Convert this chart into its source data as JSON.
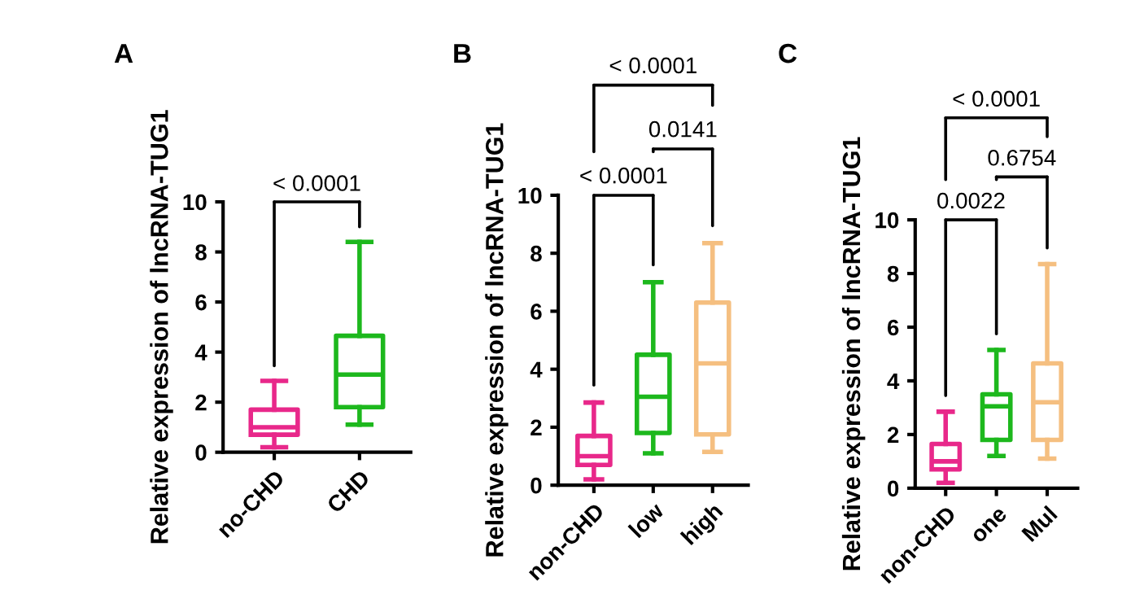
{
  "chart_data": [
    {
      "type": "box",
      "title": "A",
      "ylabel": "Relative expression of lncRNA-TUG1",
      "categories": [
        "no-CHD",
        "CHD"
      ],
      "colors": [
        "#e8288a",
        "#1db81d"
      ],
      "boxes": [
        {
          "low": 0.2,
          "q1": 0.7,
          "median": 1.0,
          "q3": 1.7,
          "high": 2.85
        },
        {
          "low": 1.1,
          "q1": 1.8,
          "median": 3.1,
          "q3": 4.65,
          "high": 8.4
        }
      ],
      "ylim": [
        0,
        10
      ],
      "yticks": [
        0,
        2,
        4,
        6,
        8,
        10
      ],
      "annotations": [
        "< 0.0001"
      ],
      "grid": false,
      "legend": false
    },
    {
      "type": "box",
      "title": "B",
      "ylabel": "Relative expression of lncRNA-TUG1",
      "categories": [
        "non-CHD",
        "low",
        "high"
      ],
      "colors": [
        "#e8288a",
        "#1db81d",
        "#f5bf80"
      ],
      "boxes": [
        {
          "low": 0.2,
          "q1": 0.7,
          "median": 1.0,
          "q3": 1.7,
          "high": 2.85
        },
        {
          "low": 1.1,
          "q1": 1.8,
          "median": 3.05,
          "q3": 4.5,
          "high": 7.0
        },
        {
          "low": 1.15,
          "q1": 1.75,
          "median": 4.2,
          "q3": 6.3,
          "high": 8.35
        }
      ],
      "ylim": [
        0,
        10
      ],
      "yticks": [
        0,
        2,
        4,
        6,
        8,
        10
      ],
      "annotations": [
        "< 0.0001",
        "0.0141",
        "< 0.0001"
      ],
      "grid": false,
      "legend": false
    },
    {
      "type": "box",
      "title": "C",
      "ylabel": "Relative expression of lncRNA-TUG1",
      "categories": [
        "non-CHD",
        "one",
        "Mul"
      ],
      "colors": [
        "#e8288a",
        "#1db81d",
        "#f5bf80"
      ],
      "boxes": [
        {
          "low": 0.2,
          "q1": 0.7,
          "median": 1.0,
          "q3": 1.65,
          "high": 2.85
        },
        {
          "low": 1.2,
          "q1": 1.8,
          "median": 3.05,
          "q3": 3.5,
          "high": 5.15
        },
        {
          "low": 1.1,
          "q1": 1.8,
          "median": 3.2,
          "q3": 4.65,
          "high": 8.35
        }
      ],
      "ylim": [
        0,
        10
      ],
      "yticks": [
        0,
        2,
        4,
        6,
        8,
        10
      ],
      "annotations": [
        "< 0.0001",
        "0.6754",
        "0.0022"
      ],
      "grid": false,
      "legend": false
    }
  ]
}
